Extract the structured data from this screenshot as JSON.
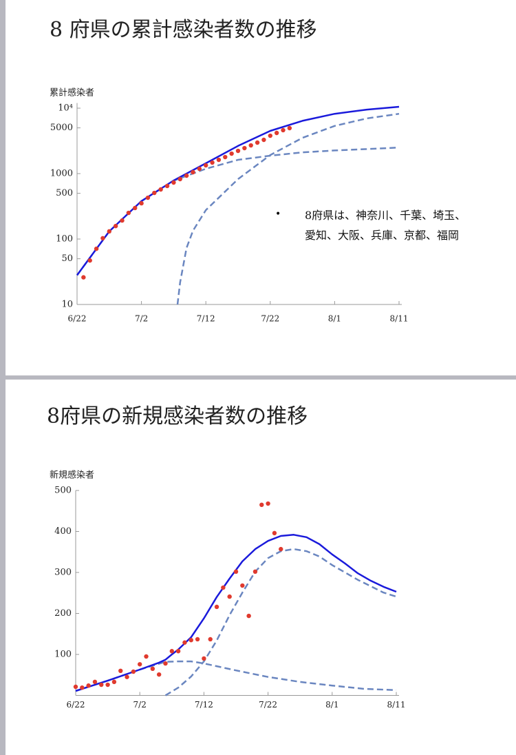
{
  "chart_data": [
    {
      "type": "line",
      "title": "8 府県の累計感染者数の推移",
      "y_label": "累計感染者",
      "y_scale": "log",
      "annotation": "8府県は、神奈川、千葉、埼玉、愛知、大阪、兵庫、京都、福岡",
      "xlim": [
        0,
        50
      ],
      "xticks": [
        {
          "value": 0,
          "label": "6/22"
        },
        {
          "value": 10,
          "label": "7/2"
        },
        {
          "value": 20,
          "label": "7/12"
        },
        {
          "value": 30,
          "label": "7/22"
        },
        {
          "value": 40,
          "label": "8/1"
        },
        {
          "value": 50,
          "label": "8/11"
        }
      ],
      "ylim": [
        10,
        12000
      ],
      "yticks": [
        10,
        50,
        100,
        500,
        1000,
        5000,
        {
          "value": 10000,
          "label": "10⁴"
        }
      ],
      "series": [
        {
          "color": "#6a86c0",
          "line": "dashed",
          "x": [
            0,
            5,
            10,
            15,
            20,
            25,
            30,
            35,
            40,
            45,
            50
          ],
          "values": [
            28,
            131,
            380,
            780,
            1185,
            1623,
            1880,
            2110,
            2260,
            2370,
            2500
          ]
        },
        {
          "color": "#6a86c0",
          "line": "dashed",
          "x": [
            15.6,
            16,
            17,
            18,
            20,
            25,
            30,
            35,
            40,
            45,
            50
          ],
          "values": [
            10,
            21.7,
            73,
            134,
            277,
            824,
            1920,
            3520,
            5350,
            6980,
            8200
          ]
        },
        {
          "color": "#1a1adb",
          "line": "solid",
          "x": [
            0,
            5,
            10,
            15,
            20,
            25,
            30,
            35,
            40,
            45,
            50
          ],
          "values": [
            28,
            131,
            380,
            785,
            1440,
            2650,
            4500,
            6400,
            8200,
            9500,
            10500
          ]
        },
        {
          "color": "#e03a2e",
          "line": "none",
          "x": [
            1,
            2,
            3,
            4,
            5,
            6,
            7,
            8,
            9,
            10,
            11,
            12,
            13,
            14,
            15,
            16,
            17,
            18,
            19,
            20,
            21,
            22,
            23,
            24,
            25,
            26,
            27,
            28,
            29,
            30,
            31,
            32,
            33
          ],
          "values": [
            26,
            47,
            71,
            103,
            131,
            158,
            192,
            251,
            298,
            352,
            428,
            507,
            573,
            647,
            730,
            824,
            930,
            1050,
            1185,
            1337,
            1473,
            1623,
            1789,
            2019,
            2225,
            2451,
            2701,
            2977,
            3281,
            3793,
            4181,
            4608,
            4955
          ]
        }
      ]
    },
    {
      "type": "line",
      "title": "8府県の新規感染者数の推移",
      "y_label": "新規感染者",
      "y_scale": "linear",
      "xlim": [
        0,
        50
      ],
      "xticks": [
        {
          "value": 0,
          "label": "6/22"
        },
        {
          "value": 10,
          "label": "7/2"
        },
        {
          "value": 20,
          "label": "7/12"
        },
        {
          "value": 30,
          "label": "7/22"
        },
        {
          "value": 40,
          "label": "8/1"
        },
        {
          "value": 50,
          "label": "8/11"
        }
      ],
      "ylim": [
        0,
        500
      ],
      "yticks": [
        100,
        200,
        300,
        400,
        500
      ],
      "series": [
        {
          "color": "#6a86c0",
          "line": "dashed",
          "x": [
            0,
            5,
            10,
            14,
            16,
            18,
            20,
            25,
            30,
            35,
            40,
            45,
            50
          ],
          "values": [
            11,
            36,
            63,
            82,
            83,
            83,
            78,
            61,
            45,
            33,
            24,
            16,
            13
          ]
        },
        {
          "color": "#6a86c0",
          "line": "dashed",
          "x": [
            14,
            16,
            18,
            20,
            22,
            24,
            26,
            28,
            30,
            32,
            34,
            36,
            38,
            40,
            44,
            48,
            50
          ],
          "values": [
            0,
            19,
            46,
            83,
            134,
            196,
            251,
            302,
            335,
            352,
            357,
            352,
            339,
            318,
            282,
            251,
            241
          ]
        },
        {
          "color": "#1a1adb",
          "line": "solid",
          "x": [
            0,
            5,
            10,
            13,
            14,
            15,
            16,
            18,
            20,
            22,
            24,
            26,
            28,
            30,
            32,
            34,
            36,
            38,
            40,
            42,
            44,
            46,
            48,
            50
          ],
          "values": [
            11,
            36,
            63,
            80,
            87,
            100,
            112,
            142,
            188,
            240,
            285,
            327,
            357,
            377,
            389,
            392,
            386,
            369,
            344,
            322,
            298,
            280,
            265,
            253
          ]
        },
        {
          "color": "#e03a2e",
          "line": "none",
          "x": [
            0,
            1,
            2,
            3,
            4,
            5,
            6,
            7,
            8,
            9,
            10,
            11,
            12,
            13,
            14,
            15,
            16,
            17,
            18,
            19,
            20,
            21,
            22,
            23,
            24,
            25,
            26,
            27,
            28,
            29,
            30,
            31,
            32
          ],
          "values": [
            21,
            19,
            24,
            33,
            26,
            26,
            33,
            60,
            45,
            58,
            76,
            95,
            65,
            51,
            78,
            108,
            108,
            129,
            135,
            137,
            90,
            137,
            216,
            263,
            241,
            302,
            268,
            194,
            302,
            465,
            468,
            396,
            357
          ]
        }
      ]
    }
  ]
}
